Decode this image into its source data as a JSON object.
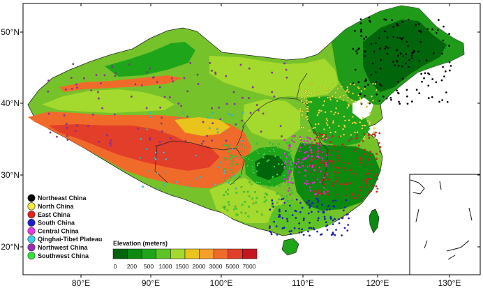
{
  "map": {
    "axes": {
      "lon_ticks": [
        "80°E",
        "90°E",
        "100°E",
        "110°E",
        "120°E",
        "130°E"
      ],
      "lat_ticks": [
        "50°N",
        "40°N",
        "30°N",
        "20°N"
      ]
    },
    "legend": {
      "items": [
        {
          "label": "Northeast China",
          "color": "#000000"
        },
        {
          "label": "North China",
          "color": "#f5ec3c"
        },
        {
          "label": "East China",
          "color": "#e8201b"
        },
        {
          "label": "South China",
          "color": "#1c1cd8"
        },
        {
          "label": "Central China",
          "color": "#ee37e6"
        },
        {
          "label": "Qinghai-Tibet Plateau",
          "color": "#39d1ea"
        },
        {
          "label": "Northwest China",
          "color": "#9a2db7"
        },
        {
          "label": "Southwest China",
          "color": "#31e43a"
        }
      ]
    },
    "colorbar": {
      "title": "Elevation (meters)",
      "ticks": [
        "0",
        "200",
        "500",
        "1000",
        "1500",
        "2000",
        "3000",
        "5000",
        "7000"
      ],
      "colors": [
        "#00650b",
        "#0c8a10",
        "#1fa51a",
        "#5ec425",
        "#a4d92d",
        "#e8c41c",
        "#f4a02a",
        "#f06b2a",
        "#e23e2a",
        "#c5151f"
      ]
    }
  }
}
